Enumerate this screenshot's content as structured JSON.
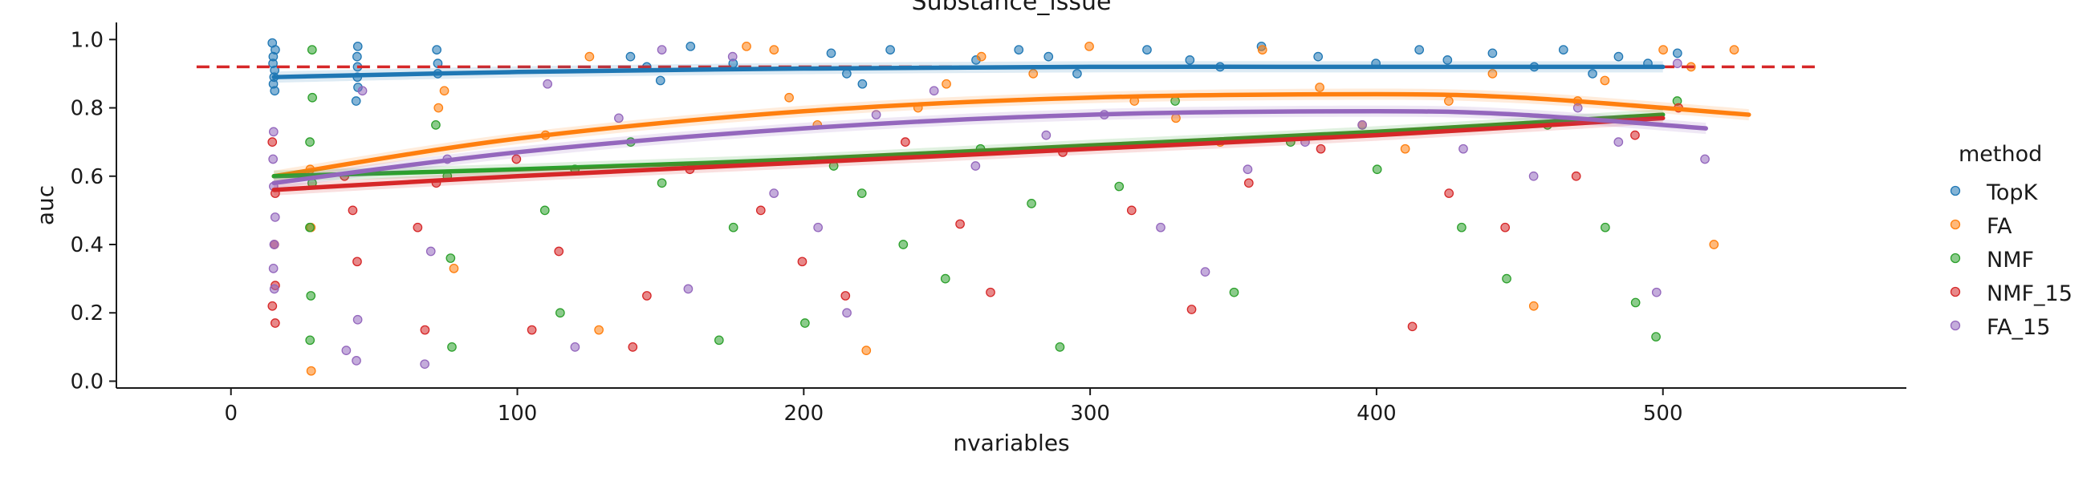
{
  "chart_data": {
    "type": "scatter",
    "title": "Substance_issue",
    "xlabel": "nvariables",
    "ylabel": "auc",
    "xlim": [
      -40,
      585
    ],
    "ylim": [
      -0.02,
      1.05
    ],
    "xticks": [
      0,
      100,
      200,
      300,
      400,
      500
    ],
    "yticks": [
      0.0,
      0.2,
      0.4,
      0.6,
      0.8,
      1.0
    ],
    "xtick_labels": [
      "0",
      "100",
      "200",
      "300",
      "400",
      "500"
    ],
    "ytick_labels": [
      "0.0",
      "0.2",
      "0.4",
      "0.6",
      "0.8",
      "1.0"
    ],
    "grid": false,
    "legend": {
      "title": "method",
      "placement": "right-outside"
    },
    "reference_line": {
      "y": 0.92,
      "x_range": [
        -12,
        555
      ],
      "color": "#d62728",
      "style": "dashed"
    },
    "series": [
      {
        "name": "TopK",
        "color": "#1f77b4",
        "trend": {
          "x": [
            15,
            100,
            200,
            300,
            400,
            500
          ],
          "y": [
            0.89,
            0.905,
            0.915,
            0.92,
            0.92,
            0.92
          ]
        },
        "points": [
          {
            "x": 15,
            "y": 0.99
          },
          {
            "x": 15,
            "y": 0.97
          },
          {
            "x": 15,
            "y": 0.95
          },
          {
            "x": 15,
            "y": 0.93
          },
          {
            "x": 15,
            "y": 0.91
          },
          {
            "x": 15,
            "y": 0.89
          },
          {
            "x": 15,
            "y": 0.87
          },
          {
            "x": 15,
            "y": 0.85
          },
          {
            "x": 44,
            "y": 0.98
          },
          {
            "x": 44,
            "y": 0.95
          },
          {
            "x": 44,
            "y": 0.92
          },
          {
            "x": 44,
            "y": 0.89
          },
          {
            "x": 44,
            "y": 0.86
          },
          {
            "x": 44,
            "y": 0.82
          },
          {
            "x": 72,
            "y": 0.97
          },
          {
            "x": 72,
            "y": 0.93
          },
          {
            "x": 72,
            "y": 0.9
          },
          {
            "x": 140,
            "y": 0.95
          },
          {
            "x": 145,
            "y": 0.92
          },
          {
            "x": 150,
            "y": 0.88
          },
          {
            "x": 160,
            "y": 0.98
          },
          {
            "x": 175,
            "y": 0.93
          },
          {
            "x": 210,
            "y": 0.96
          },
          {
            "x": 215,
            "y": 0.9
          },
          {
            "x": 220,
            "y": 0.87
          },
          {
            "x": 230,
            "y": 0.97
          },
          {
            "x": 260,
            "y": 0.94
          },
          {
            "x": 275,
            "y": 0.97
          },
          {
            "x": 285,
            "y": 0.95
          },
          {
            "x": 295,
            "y": 0.9
          },
          {
            "x": 320,
            "y": 0.97
          },
          {
            "x": 335,
            "y": 0.94
          },
          {
            "x": 345,
            "y": 0.92
          },
          {
            "x": 360,
            "y": 0.98
          },
          {
            "x": 380,
            "y": 0.95
          },
          {
            "x": 400,
            "y": 0.93
          },
          {
            "x": 415,
            "y": 0.97
          },
          {
            "x": 425,
            "y": 0.94
          },
          {
            "x": 440,
            "y": 0.96
          },
          {
            "x": 455,
            "y": 0.92
          },
          {
            "x": 465,
            "y": 0.97
          },
          {
            "x": 475,
            "y": 0.9
          },
          {
            "x": 485,
            "y": 0.95
          },
          {
            "x": 495,
            "y": 0.93
          },
          {
            "x": 505,
            "y": 0.96
          }
        ]
      },
      {
        "name": "FA",
        "color": "#ff7f0e",
        "trend": {
          "x": [
            15,
            100,
            200,
            300,
            400,
            450,
            500,
            530
          ],
          "y": [
            0.6,
            0.71,
            0.79,
            0.83,
            0.84,
            0.83,
            0.8,
            0.78
          ]
        },
        "points": [
          {
            "x": 28,
            "y": 0.03
          },
          {
            "x": 28,
            "y": 0.45
          },
          {
            "x": 28,
            "y": 0.62
          },
          {
            "x": 72,
            "y": 0.8
          },
          {
            "x": 75,
            "y": 0.85
          },
          {
            "x": 78,
            "y": 0.33
          },
          {
            "x": 110,
            "y": 0.72
          },
          {
            "x": 125,
            "y": 0.95
          },
          {
            "x": 128,
            "y": 0.15
          },
          {
            "x": 180,
            "y": 0.98
          },
          {
            "x": 190,
            "y": 0.97
          },
          {
            "x": 195,
            "y": 0.83
          },
          {
            "x": 205,
            "y": 0.75
          },
          {
            "x": 222,
            "y": 0.09
          },
          {
            "x": 240,
            "y": 0.8
          },
          {
            "x": 250,
            "y": 0.87
          },
          {
            "x": 262,
            "y": 0.95
          },
          {
            "x": 280,
            "y": 0.9
          },
          {
            "x": 300,
            "y": 0.98
          },
          {
            "x": 315,
            "y": 0.82
          },
          {
            "x": 330,
            "y": 0.77
          },
          {
            "x": 345,
            "y": 0.7
          },
          {
            "x": 360,
            "y": 0.97
          },
          {
            "x": 380,
            "y": 0.86
          },
          {
            "x": 395,
            "y": 0.75
          },
          {
            "x": 410,
            "y": 0.68
          },
          {
            "x": 425,
            "y": 0.82
          },
          {
            "x": 440,
            "y": 0.9
          },
          {
            "x": 455,
            "y": 0.22
          },
          {
            "x": 470,
            "y": 0.82
          },
          {
            "x": 480,
            "y": 0.88
          },
          {
            "x": 500,
            "y": 0.97
          },
          {
            "x": 510,
            "y": 0.92
          },
          {
            "x": 518,
            "y": 0.4
          },
          {
            "x": 525,
            "y": 0.97
          }
        ]
      },
      {
        "name": "NMF",
        "color": "#2ca02c",
        "trend": {
          "x": [
            15,
            100,
            200,
            300,
            400,
            500
          ],
          "y": [
            0.6,
            0.62,
            0.65,
            0.69,
            0.73,
            0.78
          ]
        },
        "points": [
          {
            "x": 28,
            "y": 0.97
          },
          {
            "x": 28,
            "y": 0.83
          },
          {
            "x": 28,
            "y": 0.7
          },
          {
            "x": 28,
            "y": 0.58
          },
          {
            "x": 28,
            "y": 0.45
          },
          {
            "x": 28,
            "y": 0.25
          },
          {
            "x": 28,
            "y": 0.12
          },
          {
            "x": 72,
            "y": 0.75
          },
          {
            "x": 75,
            "y": 0.6
          },
          {
            "x": 77,
            "y": 0.36
          },
          {
            "x": 77,
            "y": 0.1
          },
          {
            "x": 110,
            "y": 0.5
          },
          {
            "x": 115,
            "y": 0.2
          },
          {
            "x": 120,
            "y": 0.62
          },
          {
            "x": 140,
            "y": 0.7
          },
          {
            "x": 150,
            "y": 0.58
          },
          {
            "x": 170,
            "y": 0.12
          },
          {
            "x": 175,
            "y": 0.45
          },
          {
            "x": 200,
            "y": 0.17
          },
          {
            "x": 210,
            "y": 0.63
          },
          {
            "x": 220,
            "y": 0.55
          },
          {
            "x": 235,
            "y": 0.4
          },
          {
            "x": 250,
            "y": 0.3
          },
          {
            "x": 262,
            "y": 0.68
          },
          {
            "x": 280,
            "y": 0.52
          },
          {
            "x": 290,
            "y": 0.1
          },
          {
            "x": 310,
            "y": 0.57
          },
          {
            "x": 330,
            "y": 0.82
          },
          {
            "x": 350,
            "y": 0.26
          },
          {
            "x": 370,
            "y": 0.7
          },
          {
            "x": 400,
            "y": 0.62
          },
          {
            "x": 430,
            "y": 0.45
          },
          {
            "x": 445,
            "y": 0.3
          },
          {
            "x": 460,
            "y": 0.75
          },
          {
            "x": 480,
            "y": 0.45
          },
          {
            "x": 490,
            "y": 0.23
          },
          {
            "x": 498,
            "y": 0.13
          },
          {
            "x": 505,
            "y": 0.82
          }
        ]
      },
      {
        "name": "NMF_15",
        "color": "#d62728",
        "trend": {
          "x": [
            15,
            100,
            200,
            300,
            400,
            500
          ],
          "y": [
            0.56,
            0.6,
            0.64,
            0.68,
            0.72,
            0.77
          ]
        },
        "points": [
          {
            "x": 15,
            "y": 0.7
          },
          {
            "x": 15,
            "y": 0.55
          },
          {
            "x": 15,
            "y": 0.4
          },
          {
            "x": 15,
            "y": 0.28
          },
          {
            "x": 15,
            "y": 0.22
          },
          {
            "x": 15,
            "y": 0.17
          },
          {
            "x": 40,
            "y": 0.6
          },
          {
            "x": 42,
            "y": 0.5
          },
          {
            "x": 44,
            "y": 0.35
          },
          {
            "x": 65,
            "y": 0.45
          },
          {
            "x": 68,
            "y": 0.15
          },
          {
            "x": 72,
            "y": 0.58
          },
          {
            "x": 100,
            "y": 0.65
          },
          {
            "x": 105,
            "y": 0.15
          },
          {
            "x": 115,
            "y": 0.38
          },
          {
            "x": 140,
            "y": 0.1
          },
          {
            "x": 145,
            "y": 0.25
          },
          {
            "x": 160,
            "y": 0.62
          },
          {
            "x": 185,
            "y": 0.5
          },
          {
            "x": 200,
            "y": 0.35
          },
          {
            "x": 215,
            "y": 0.25
          },
          {
            "x": 235,
            "y": 0.7
          },
          {
            "x": 255,
            "y": 0.46
          },
          {
            "x": 265,
            "y": 0.26
          },
          {
            "x": 290,
            "y": 0.67
          },
          {
            "x": 315,
            "y": 0.5
          },
          {
            "x": 335,
            "y": 0.21
          },
          {
            "x": 355,
            "y": 0.58
          },
          {
            "x": 380,
            "y": 0.68
          },
          {
            "x": 412,
            "y": 0.16
          },
          {
            "x": 425,
            "y": 0.55
          },
          {
            "x": 445,
            "y": 0.45
          },
          {
            "x": 470,
            "y": 0.6
          },
          {
            "x": 490,
            "y": 0.72
          },
          {
            "x": 505,
            "y": 0.8
          }
        ]
      },
      {
        "name": "FA_15",
        "color": "#9467bd",
        "trend": {
          "x": [
            15,
            100,
            200,
            300,
            400,
            450,
            515
          ],
          "y": [
            0.58,
            0.67,
            0.74,
            0.78,
            0.79,
            0.78,
            0.74
          ]
        },
        "points": [
          {
            "x": 15,
            "y": 0.73
          },
          {
            "x": 15,
            "y": 0.65
          },
          {
            "x": 15,
            "y": 0.57
          },
          {
            "x": 15,
            "y": 0.48
          },
          {
            "x": 15,
            "y": 0.4
          },
          {
            "x": 15,
            "y": 0.33
          },
          {
            "x": 15,
            "y": 0.27
          },
          {
            "x": 40,
            "y": 0.09
          },
          {
            "x": 44,
            "y": 0.06
          },
          {
            "x": 44,
            "y": 0.18
          },
          {
            "x": 46,
            "y": 0.85
          },
          {
            "x": 68,
            "y": 0.05
          },
          {
            "x": 70,
            "y": 0.38
          },
          {
            "x": 75,
            "y": 0.65
          },
          {
            "x": 110,
            "y": 0.87
          },
          {
            "x": 120,
            "y": 0.1
          },
          {
            "x": 135,
            "y": 0.77
          },
          {
            "x": 150,
            "y": 0.97
          },
          {
            "x": 160,
            "y": 0.27
          },
          {
            "x": 175,
            "y": 0.95
          },
          {
            "x": 190,
            "y": 0.55
          },
          {
            "x": 205,
            "y": 0.45
          },
          {
            "x": 215,
            "y": 0.2
          },
          {
            "x": 225,
            "y": 0.78
          },
          {
            "x": 245,
            "y": 0.85
          },
          {
            "x": 260,
            "y": 0.63
          },
          {
            "x": 285,
            "y": 0.72
          },
          {
            "x": 305,
            "y": 0.78
          },
          {
            "x": 325,
            "y": 0.45
          },
          {
            "x": 340,
            "y": 0.32
          },
          {
            "x": 355,
            "y": 0.62
          },
          {
            "x": 375,
            "y": 0.7
          },
          {
            "x": 395,
            "y": 0.75
          },
          {
            "x": 430,
            "y": 0.68
          },
          {
            "x": 455,
            "y": 0.6
          },
          {
            "x": 470,
            "y": 0.8
          },
          {
            "x": 485,
            "y": 0.7
          },
          {
            "x": 498,
            "y": 0.26
          },
          {
            "x": 505,
            "y": 0.93
          },
          {
            "x": 515,
            "y": 0.65
          }
        ]
      }
    ]
  }
}
